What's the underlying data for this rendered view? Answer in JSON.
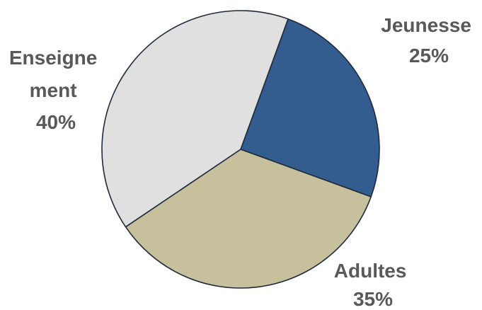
{
  "chart_data": {
    "type": "pie",
    "title": "",
    "slices": [
      {
        "label": "Jeunesse",
        "value": 25,
        "value_label": "25%",
        "color": "#335c8f"
      },
      {
        "label": "Adultes",
        "value": 35,
        "value_label": "35%",
        "color": "#c6c09c"
      },
      {
        "label": "Enseigne ment",
        "value": 40,
        "value_label": "40%",
        "color": "#e0e0e0"
      }
    ],
    "start_angle_deg": 20,
    "direction": "clockwise",
    "legend": "none",
    "slice_border_color": "#1f2a3a"
  }
}
